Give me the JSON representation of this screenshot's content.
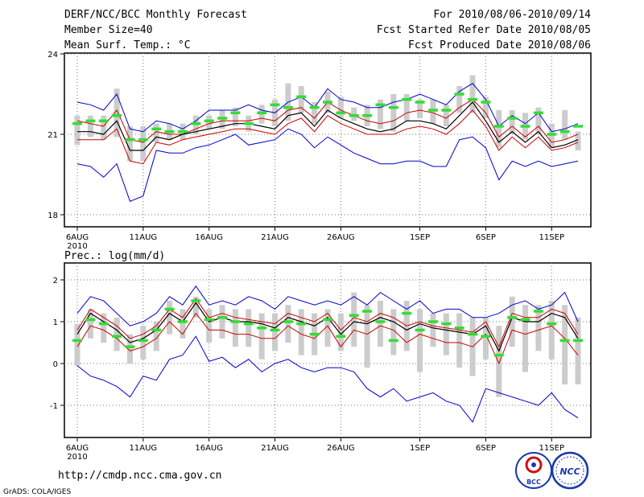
{
  "header": {
    "title": "DERF/NCC/BCC Monthly Forecast",
    "member_size": "Member Size=40",
    "variable": "Mean Surf. Temp.: °C",
    "period": "For 2010/08/06-2010/09/14",
    "fcst_started": "Fcst Started Refer Date 2010/08/05",
    "fcst_produced": "Fcst Produced Date 2010/08/06"
  },
  "footer": {
    "url": "http://cmdp.ncc.cma.gov.cn",
    "grads": "GrADS: COLA/IGES",
    "logo_bcc": "BCC",
    "logo_ncc": "NCC"
  },
  "colors": {
    "envelope": "#0000cc",
    "spread": "#cc0000",
    "mean": "#000000",
    "observed": "#33dd33",
    "box": "#cccccc"
  },
  "chart_data": [
    {
      "name": "temperature",
      "type": "line",
      "title": "Mean Surf. Temp.: °C",
      "xlabel": "",
      "ylabel": "°C",
      "ylim": [
        18,
        24
      ],
      "yticks": [
        "18",
        "21",
        "24"
      ],
      "ytick_values": [
        18,
        21,
        24
      ],
      "xticks": [
        "6AUG",
        "11AUG",
        "16AUG",
        "21AUG",
        "26AUG",
        "1SEP",
        "6SEP",
        "11SEP"
      ],
      "xtick_days": [
        0,
        5,
        10,
        15,
        20,
        26,
        31,
        36
      ],
      "year_label": "2010",
      "days": 39,
      "series": [
        {
          "name": "max",
          "color": "#0000cc",
          "values": [
            22.2,
            22.1,
            21.9,
            22.5,
            21.2,
            21.1,
            21.5,
            21.4,
            21.2,
            21.5,
            21.9,
            21.9,
            21.9,
            22.1,
            21.9,
            21.8,
            22.2,
            22.4,
            22.0,
            22.7,
            22.3,
            22.2,
            22.0,
            22.0,
            22.2,
            22.3,
            22.5,
            22.3,
            22.1,
            22.6,
            22.9,
            22.3,
            21.3,
            21.7,
            21.4,
            21.8,
            21.1,
            21.2,
            21.4
          ]
        },
        {
          "name": "upper",
          "color": "#cc0000",
          "values": [
            21.5,
            21.4,
            21.3,
            21.9,
            20.8,
            20.7,
            21.1,
            21.0,
            21.0,
            21.2,
            21.4,
            21.5,
            21.5,
            21.5,
            21.6,
            21.5,
            21.9,
            22.0,
            21.6,
            22.2,
            21.9,
            21.7,
            21.5,
            21.4,
            21.5,
            21.8,
            21.9,
            21.8,
            21.6,
            22.0,
            22.3,
            21.8,
            20.9,
            21.3,
            20.9,
            21.3,
            20.7,
            20.8,
            21.0
          ]
        },
        {
          "name": "ensemble_mean",
          "color": "#000000",
          "values": [
            21.1,
            21.1,
            21.0,
            21.5,
            20.4,
            20.4,
            20.9,
            20.8,
            21.0,
            21.1,
            21.2,
            21.3,
            21.4,
            21.4,
            21.3,
            21.2,
            21.7,
            21.8,
            21.3,
            21.9,
            21.6,
            21.4,
            21.2,
            21.1,
            21.2,
            21.5,
            21.5,
            21.4,
            21.2,
            21.7,
            22.2,
            21.5,
            20.7,
            21.1,
            20.7,
            21.1,
            20.5,
            20.6,
            20.8
          ]
        },
        {
          "name": "lower",
          "color": "#cc0000",
          "values": [
            20.8,
            20.8,
            20.8,
            21.2,
            20.0,
            19.9,
            20.7,
            20.6,
            20.8,
            20.9,
            21.0,
            21.1,
            21.2,
            21.2,
            21.1,
            21.0,
            21.4,
            21.6,
            21.1,
            21.7,
            21.4,
            21.2,
            21.0,
            21.0,
            21.0,
            21.2,
            21.3,
            21.2,
            21.0,
            21.4,
            21.9,
            21.3,
            20.4,
            20.9,
            20.5,
            20.9,
            20.4,
            20.5,
            20.7
          ]
        },
        {
          "name": "min",
          "color": "#0000cc",
          "values": [
            19.9,
            19.8,
            19.4,
            19.9,
            18.5,
            18.7,
            20.4,
            20.3,
            20.3,
            20.5,
            20.6,
            20.8,
            21.0,
            20.6,
            20.7,
            20.8,
            21.2,
            21.0,
            20.5,
            20.9,
            20.6,
            20.3,
            20.1,
            19.9,
            19.9,
            20.0,
            20.0,
            19.8,
            19.8,
            20.8,
            20.9,
            20.5,
            19.3,
            20.0,
            19.8,
            20.0,
            19.8,
            19.9,
            20.0
          ]
        },
        {
          "name": "observed",
          "color": "#33dd33",
          "values": [
            21.4,
            21.5,
            21.5,
            21.7,
            20.8,
            20.8,
            21.2,
            21.1,
            21.1,
            21.4,
            21.5,
            21.6,
            21.8,
            21.4,
            21.8,
            22.1,
            22.0,
            22.4,
            22.0,
            22.2,
            21.8,
            21.7,
            21.7,
            22.1,
            22.0,
            22.3,
            22.2,
            21.9,
            21.9,
            22.5,
            22.3,
            22.2,
            21.3,
            21.6,
            21.3,
            21.8,
            21.0,
            21.1,
            21.3
          ]
        }
      ],
      "box_range": {
        "low": [
          20.6,
          20.9,
          20.8,
          20.9,
          20.0,
          20.0,
          20.7,
          20.8,
          20.8,
          21.0,
          21.2,
          21.2,
          21.3,
          21.1,
          21.4,
          21.3,
          21.5,
          21.8,
          21.4,
          21.8,
          21.6,
          21.5,
          21.3,
          21.2,
          21.1,
          21.5,
          21.6,
          21.4,
          21.3,
          21.8,
          21.8,
          21.6,
          20.5,
          21.0,
          20.8,
          21.0,
          20.5,
          20.8,
          20.4
        ],
        "high": [
          21.7,
          21.7,
          21.7,
          22.7,
          21.3,
          21.3,
          21.4,
          21.4,
          21.4,
          21.7,
          21.7,
          21.9,
          22.0,
          21.7,
          22.1,
          22.3,
          22.9,
          22.8,
          22.2,
          22.6,
          22.4,
          22.0,
          22.1,
          22.3,
          22.5,
          22.5,
          22.3,
          22.3,
          22.1,
          22.8,
          23.2,
          22.4,
          21.9,
          21.9,
          21.8,
          22.0,
          21.4,
          21.9,
          21.1
        ]
      }
    },
    {
      "name": "precipitation",
      "type": "line",
      "title": "Prec.: log(mm/d)",
      "xlabel": "",
      "ylabel": "log(mm/d)",
      "ylim": [
        -1.9,
        2.3
      ],
      "yticks": [
        "-1",
        "0",
        "1",
        "2"
      ],
      "ytick_values": [
        -1,
        0,
        1,
        2
      ],
      "xticks": [
        "6AUG",
        "11AUG",
        "16AUG",
        "21AUG",
        "26AUG",
        "1SEP",
        "6SEP",
        "11SEP"
      ],
      "xtick_days": [
        0,
        5,
        10,
        15,
        20,
        26,
        31,
        36
      ],
      "year_label": "2010",
      "days": 39,
      "series": [
        {
          "name": "max",
          "color": "#0000cc",
          "values": [
            1.2,
            1.6,
            1.5,
            1.2,
            0.9,
            1.0,
            1.2,
            1.6,
            1.4,
            1.85,
            1.4,
            1.5,
            1.4,
            1.6,
            1.5,
            1.3,
            1.6,
            1.5,
            1.4,
            1.5,
            1.4,
            1.6,
            1.4,
            1.7,
            1.5,
            1.3,
            1.5,
            1.2,
            1.3,
            1.3,
            1.1,
            1.1,
            1.2,
            1.4,
            1.5,
            1.3,
            1.4,
            1.7,
            1.0
          ]
        },
        {
          "name": "upper",
          "color": "#cc0000",
          "values": [
            0.8,
            1.3,
            1.1,
            0.9,
            0.6,
            0.7,
            0.9,
            1.3,
            1.1,
            1.55,
            1.1,
            1.2,
            1.1,
            1.05,
            1.0,
            0.95,
            1.2,
            1.1,
            1.0,
            1.2,
            0.8,
            1.1,
            1.0,
            1.2,
            1.1,
            0.9,
            1.0,
            0.9,
            0.85,
            0.8,
            0.75,
            1.0,
            0.4,
            1.2,
            1.1,
            1.1,
            1.3,
            1.2,
            0.7
          ]
        },
        {
          "name": "ensemble_mean",
          "color": "#000000",
          "values": [
            0.7,
            1.2,
            1.0,
            0.8,
            0.5,
            0.6,
            0.8,
            1.2,
            1.0,
            1.45,
            1.0,
            1.1,
            1.0,
            1.0,
            0.95,
            0.85,
            1.1,
            1.0,
            0.9,
            1.1,
            0.7,
            1.0,
            0.95,
            1.1,
            1.0,
            0.8,
            0.95,
            0.85,
            0.8,
            0.75,
            0.7,
            0.9,
            0.3,
            1.1,
            1.0,
            1.0,
            1.2,
            1.1,
            0.6
          ]
        },
        {
          "name": "lower",
          "color": "#cc0000",
          "values": [
            0.4,
            0.9,
            0.8,
            0.6,
            0.3,
            0.4,
            0.6,
            1.0,
            0.7,
            1.2,
            0.8,
            0.8,
            0.7,
            0.7,
            0.6,
            0.6,
            0.9,
            0.7,
            0.6,
            0.9,
            0.4,
            0.8,
            0.7,
            0.9,
            0.8,
            0.5,
            0.7,
            0.6,
            0.5,
            0.5,
            0.4,
            0.7,
            0.0,
            0.8,
            0.7,
            0.8,
            0.9,
            0.6,
            0.2
          ]
        },
        {
          "name": "min",
          "color": "#0000cc",
          "values": [
            -0.05,
            -0.3,
            -0.4,
            -0.55,
            -0.8,
            -0.3,
            -0.4,
            0.1,
            0.2,
            0.65,
            0.05,
            0.15,
            -0.1,
            0.1,
            -0.2,
            0.0,
            0.1,
            -0.1,
            -0.2,
            -0.1,
            -0.1,
            -0.2,
            -0.6,
            -0.8,
            -0.6,
            -0.9,
            -0.8,
            -0.7,
            -0.9,
            -1.0,
            -1.4,
            -0.6,
            -0.7,
            -0.8,
            -0.9,
            -1.0,
            -0.7,
            -1.1,
            -1.3
          ]
        },
        {
          "name": "observed",
          "color": "#33dd33",
          "values": [
            0.55,
            1.05,
            0.95,
            0.65,
            0.4,
            0.55,
            0.8,
            1.3,
            1.0,
            1.5,
            1.05,
            1.1,
            1.0,
            0.95,
            0.85,
            0.8,
            1.0,
            0.95,
            0.7,
            1.05,
            0.65,
            1.15,
            1.25,
            1.0,
            0.55,
            1.2,
            0.8,
            1.0,
            0.95,
            0.85,
            0.7,
            0.65,
            0.2,
            1.1,
            1.05,
            1.25,
            0.95,
            0.55,
            0.55
          ]
        }
      ],
      "box_range": {
        "low": [
          -0.05,
          0.6,
          0.5,
          0.3,
          0.0,
          0.1,
          0.3,
          0.7,
          0.6,
          1.1,
          0.5,
          0.6,
          0.4,
          0.4,
          0.1,
          0.3,
          0.5,
          0.2,
          0.2,
          0.4,
          0.3,
          0.4,
          -0.1,
          0.4,
          0.2,
          0.3,
          -0.2,
          0.4,
          0.2,
          -0.1,
          -0.3,
          0.1,
          -0.8,
          0.4,
          -0.2,
          0.3,
          0.1,
          -0.5,
          -0.5
        ],
        "high": [
          0.95,
          1.3,
          1.2,
          1.1,
          0.7,
          0.9,
          1.0,
          1.5,
          1.3,
          1.6,
          1.3,
          1.4,
          1.3,
          1.3,
          1.2,
          1.2,
          1.4,
          1.3,
          1.2,
          1.3,
          1.2,
          1.7,
          1.4,
          1.5,
          1.3,
          1.5,
          1.3,
          1.2,
          1.2,
          1.2,
          1.1,
          1.1,
          0.9,
          1.6,
          1.4,
          1.4,
          1.5,
          1.4,
          1.1
        ]
      }
    }
  ]
}
